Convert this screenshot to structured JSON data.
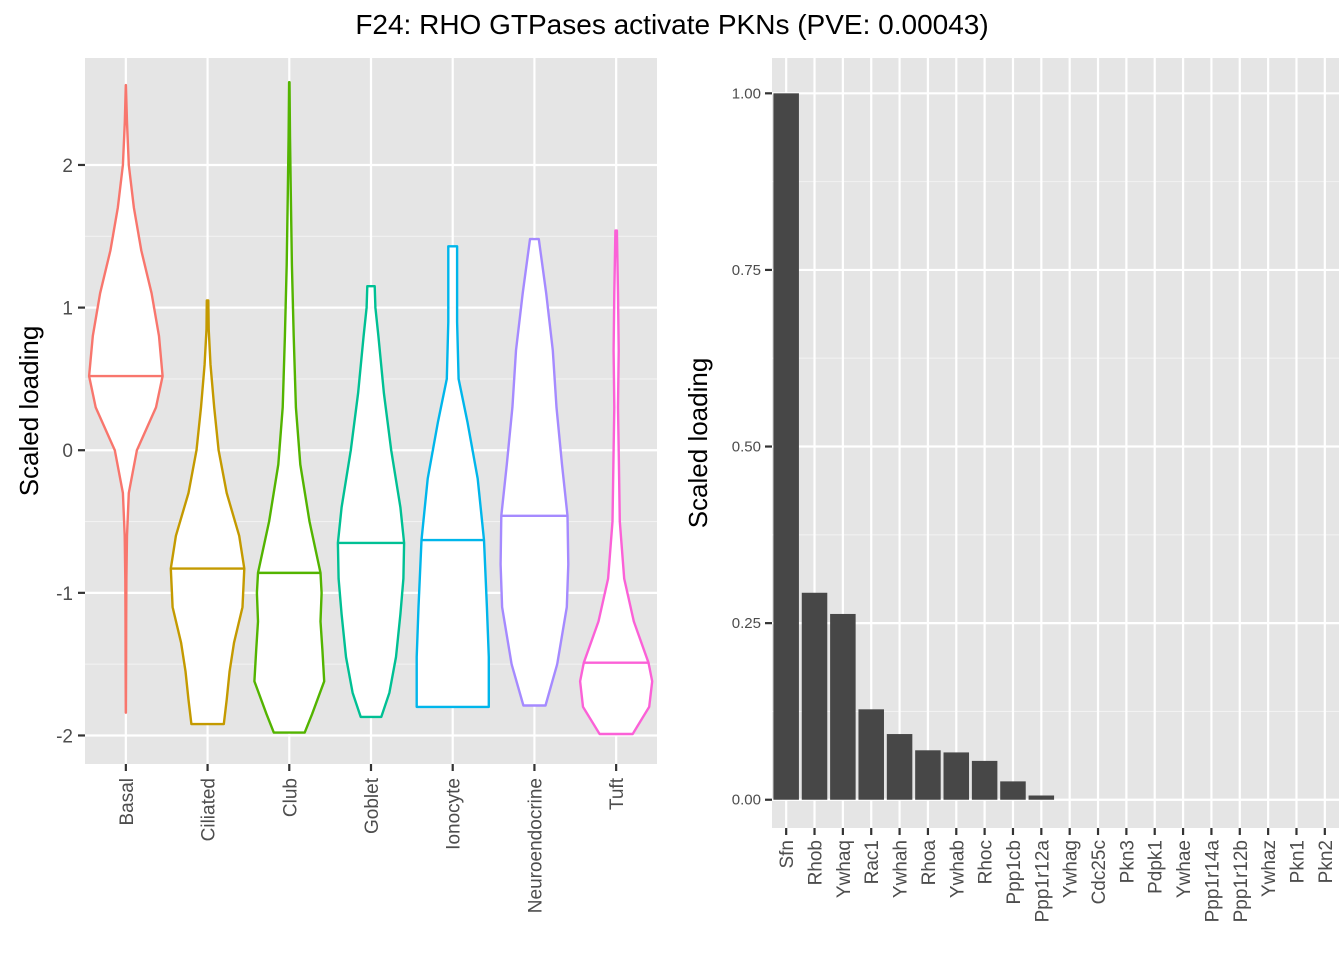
{
  "title": "F24: RHO GTPases activate PKNs (PVE: 0.00043)",
  "chart_data": [
    {
      "type": "violin",
      "ylabel": "Scaled loading",
      "xlabel": "",
      "ylim": [
        -2.2,
        2.75
      ],
      "yticks": [
        -2,
        -1,
        0,
        1,
        2
      ],
      "yticks_labels": [
        "-2",
        "-1",
        "0",
        "1",
        "2"
      ],
      "grid": true,
      "categories": [
        "Basal",
        "Ciliated",
        "Club",
        "Goblet",
        "Ionocyte",
        "Neuroendocrine",
        "Tuft"
      ],
      "series": [
        {
          "category": "Basal",
          "color": "#F8766D",
          "min": -1.84,
          "max": 2.56,
          "median": 0.52,
          "density": [
            [
              -1.84,
              0.002
            ],
            [
              -1.5,
              0.006
            ],
            [
              -1.2,
              0.01
            ],
            [
              -0.9,
              0.016
            ],
            [
              -0.6,
              0.032
            ],
            [
              -0.3,
              0.08
            ],
            [
              0.0,
              0.3
            ],
            [
              0.3,
              0.82
            ],
            [
              0.52,
              1.0
            ],
            [
              0.8,
              0.9
            ],
            [
              1.1,
              0.7
            ],
            [
              1.4,
              0.42
            ],
            [
              1.7,
              0.22
            ],
            [
              2.0,
              0.08
            ],
            [
              2.3,
              0.03
            ],
            [
              2.56,
              0.002
            ]
          ]
        },
        {
          "category": "Ciliated",
          "color": "#C49A00",
          "min": -1.92,
          "max": 1.05,
          "median": -0.83,
          "density": [
            [
              -1.92,
              0.44
            ],
            [
              -1.75,
              0.52
            ],
            [
              -1.55,
              0.6
            ],
            [
              -1.35,
              0.72
            ],
            [
              -1.1,
              0.95
            ],
            [
              -0.83,
              1.0
            ],
            [
              -0.6,
              0.86
            ],
            [
              -0.3,
              0.52
            ],
            [
              0.0,
              0.3
            ],
            [
              0.3,
              0.18
            ],
            [
              0.6,
              0.08
            ],
            [
              0.85,
              0.03
            ],
            [
              1.05,
              0.02
            ]
          ]
        },
        {
          "category": "Club",
          "color": "#53B400",
          "min": -1.98,
          "max": 2.58,
          "median": -0.86,
          "density": [
            [
              -1.98,
              0.42
            ],
            [
              -1.85,
              0.62
            ],
            [
              -1.62,
              0.95
            ],
            [
              -1.4,
              0.9
            ],
            [
              -1.2,
              0.85
            ],
            [
              -1.0,
              0.88
            ],
            [
              -0.86,
              0.85
            ],
            [
              -0.5,
              0.55
            ],
            [
              -0.1,
              0.3
            ],
            [
              0.3,
              0.18
            ],
            [
              0.8,
              0.12
            ],
            [
              1.3,
              0.07
            ],
            [
              1.8,
              0.04
            ],
            [
              2.2,
              0.02
            ],
            [
              2.58,
              0.005
            ]
          ]
        },
        {
          "category": "Goblet",
          "color": "#00C094",
          "min": -1.87,
          "max": 1.15,
          "median": -0.65,
          "density": [
            [
              -1.87,
              0.28
            ],
            [
              -1.7,
              0.5
            ],
            [
              -1.45,
              0.68
            ],
            [
              -1.15,
              0.8
            ],
            [
              -0.9,
              0.88
            ],
            [
              -0.65,
              0.9
            ],
            [
              -0.4,
              0.8
            ],
            [
              0.0,
              0.55
            ],
            [
              0.4,
              0.35
            ],
            [
              0.8,
              0.2
            ],
            [
              1.0,
              0.12
            ],
            [
              1.15,
              0.1
            ]
          ]
        },
        {
          "category": "Ionocyte",
          "color": "#00B6EB",
          "min": -1.8,
          "max": 1.43,
          "median": -0.63,
          "density": [
            [
              -1.8,
              0.98
            ],
            [
              -1.45,
              0.98
            ],
            [
              -1.1,
              0.93
            ],
            [
              -0.63,
              0.85
            ],
            [
              -0.2,
              0.68
            ],
            [
              0.2,
              0.4
            ],
            [
              0.5,
              0.16
            ],
            [
              0.9,
              0.12
            ],
            [
              1.2,
              0.12
            ],
            [
              1.43,
              0.12
            ]
          ]
        },
        {
          "category": "Neuroendocrine",
          "color": "#A58AFF",
          "min": -1.79,
          "max": 1.48,
          "median": -0.46,
          "density": [
            [
              -1.79,
              0.3
            ],
            [
              -1.5,
              0.62
            ],
            [
              -1.1,
              0.88
            ],
            [
              -0.8,
              0.92
            ],
            [
              -0.46,
              0.9
            ],
            [
              -0.1,
              0.75
            ],
            [
              0.3,
              0.6
            ],
            [
              0.7,
              0.5
            ],
            [
              1.1,
              0.32
            ],
            [
              1.48,
              0.12
            ]
          ]
        },
        {
          "category": "Tuft",
          "color": "#FB61D7",
          "min": -1.99,
          "max": 1.54,
          "median": -1.49,
          "density": [
            [
              -1.99,
              0.45
            ],
            [
              -1.8,
              0.9
            ],
            [
              -1.62,
              0.98
            ],
            [
              -1.49,
              0.88
            ],
            [
              -1.2,
              0.48
            ],
            [
              -0.9,
              0.22
            ],
            [
              -0.5,
              0.1
            ],
            [
              0.0,
              0.07
            ],
            [
              0.3,
              0.05
            ],
            [
              0.7,
              0.07
            ],
            [
              1.1,
              0.05
            ],
            [
              1.54,
              0.02
            ]
          ]
        }
      ]
    },
    {
      "type": "bar",
      "ylabel": "Scaled loading",
      "xlabel": "",
      "ylim": [
        -0.04,
        1.05
      ],
      "yticks": [
        0,
        0.25,
        0.5,
        0.75,
        1
      ],
      "yticks_labels": [
        "0.00",
        "0.25",
        "0.50",
        "0.75",
        "1.00"
      ],
      "grid": true,
      "categories": [
        "Sfn",
        "Rhob",
        "Ywhaq",
        "Rac1",
        "Ywhah",
        "Rhoa",
        "Ywhab",
        "Rhoc",
        "Ppp1cb",
        "Ppp1r12a",
        "Ywhag",
        "Cdc25c",
        "Pkn3",
        "Pdpk1",
        "Ywhae",
        "Ppp1r14a",
        "Ppp1r12b",
        "Ywhaz",
        "Pkn1",
        "Pkn2"
      ],
      "values": [
        1.0,
        0.293,
        0.263,
        0.128,
        0.093,
        0.07,
        0.067,
        0.055,
        0.026,
        0.006,
        0,
        0,
        0,
        0,
        0,
        0,
        0,
        0,
        0,
        0
      ],
      "color": "#474747"
    }
  ]
}
